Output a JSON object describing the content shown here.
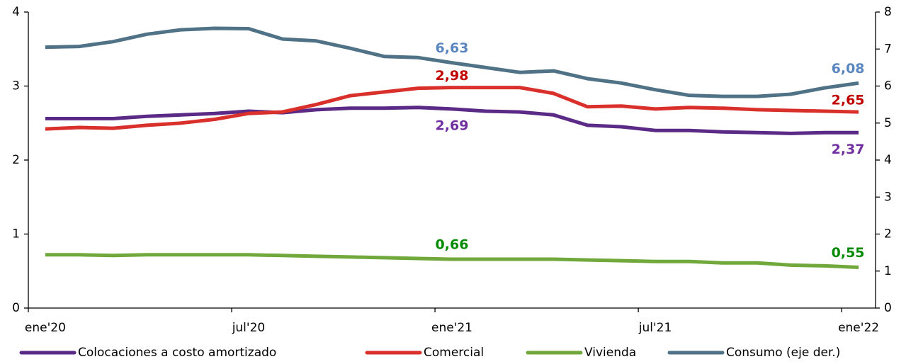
{
  "chart_data": {
    "type": "line",
    "categories": [
      "ene'20",
      null,
      null,
      null,
      null,
      null,
      "jul'20",
      null,
      null,
      null,
      null,
      null,
      "ene'21",
      null,
      null,
      null,
      null,
      null,
      "jul'21",
      null,
      null,
      null,
      null,
      null,
      "ene'22"
    ],
    "ylim": [
      0,
      4
    ],
    "yticks": [
      0,
      1,
      2,
      3,
      4
    ],
    "y2lim": [
      0,
      8
    ],
    "y2ticks": [
      0,
      1,
      2,
      3,
      4,
      5,
      6,
      7,
      8
    ],
    "series": [
      {
        "name": "Colocaciones a costo amortizado",
        "color": "#5b2a86",
        "label_color": "#7030a0",
        "values": [
          2.56,
          2.56,
          2.56,
          2.59,
          2.61,
          2.63,
          2.66,
          2.64,
          2.68,
          2.7,
          2.7,
          2.71,
          2.69,
          2.66,
          2.65,
          2.61,
          2.47,
          2.45,
          2.4,
          2.4,
          2.38,
          2.37,
          2.36,
          2.37,
          2.37
        ],
        "value_labels": [
          null,
          null,
          null,
          null,
          null,
          null,
          null,
          null,
          null,
          null,
          null,
          null,
          "2,69",
          null,
          null,
          null,
          null,
          null,
          null,
          null,
          null,
          null,
          null,
          null,
          "2,37"
        ]
      },
      {
        "name": "Comercial",
        "color": "#d9302c",
        "label_color": "#c00000",
        "values": [
          2.42,
          2.44,
          2.43,
          2.47,
          2.5,
          2.55,
          2.63,
          2.65,
          2.75,
          2.87,
          2.92,
          2.97,
          2.98,
          2.98,
          2.98,
          2.9,
          2.72,
          2.73,
          2.69,
          2.71,
          2.7,
          2.68,
          2.67,
          2.66,
          2.65
        ],
        "value_labels": [
          null,
          null,
          null,
          null,
          null,
          null,
          null,
          null,
          null,
          null,
          null,
          null,
          "2,98",
          null,
          null,
          null,
          null,
          null,
          null,
          null,
          null,
          null,
          null,
          null,
          "2,65"
        ]
      },
      {
        "name": "Vivienda",
        "color": "#70a83b",
        "label_color": "#008a00",
        "values": [
          0.72,
          0.72,
          0.71,
          0.72,
          0.72,
          0.72,
          0.72,
          0.71,
          0.7,
          0.69,
          0.68,
          0.67,
          0.66,
          0.66,
          0.66,
          0.66,
          0.65,
          0.64,
          0.63,
          0.63,
          0.61,
          0.61,
          0.58,
          0.57,
          0.55
        ],
        "value_labels": [
          null,
          null,
          null,
          null,
          null,
          null,
          null,
          null,
          null,
          null,
          null,
          null,
          "0,66",
          null,
          null,
          null,
          null,
          null,
          null,
          null,
          null,
          null,
          null,
          null,
          "0,55"
        ]
      },
      {
        "name": "Consumo (eje der.)",
        "color": "#4f7286",
        "label_color": "#5a86c0",
        "axis": "y2",
        "values": [
          7.05,
          7.07,
          7.2,
          7.4,
          7.52,
          7.56,
          7.55,
          7.27,
          7.22,
          7.02,
          6.8,
          6.77,
          6.63,
          6.5,
          6.37,
          6.41,
          6.2,
          6.08,
          5.9,
          5.75,
          5.72,
          5.72,
          5.78,
          5.95,
          6.08
        ],
        "value_labels": [
          null,
          null,
          null,
          null,
          null,
          null,
          null,
          null,
          null,
          null,
          null,
          null,
          "6,63",
          null,
          null,
          null,
          null,
          null,
          null,
          null,
          null,
          null,
          null,
          null,
          "6,08"
        ]
      }
    ]
  }
}
